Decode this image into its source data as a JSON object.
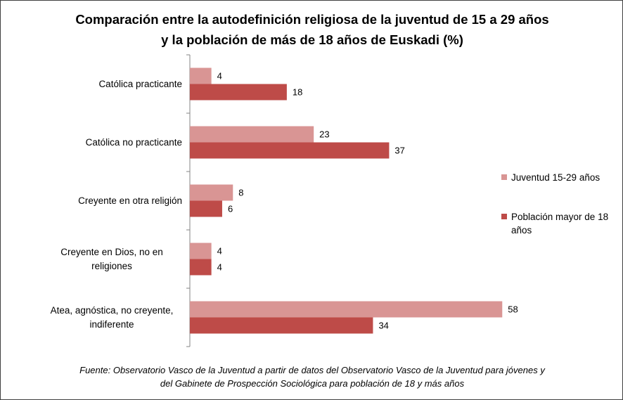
{
  "chart_data": {
    "type": "bar",
    "orientation": "horizontal",
    "title": "Comparación entre la autodefinición religiosa de la juventud de 15 a 29 años y la población de más de 18 años de Euskadi (%)",
    "categories": [
      "Católica practicante",
      "Católica no practicante",
      "Creyente en otra religión",
      "Creyente en Dios, no en religiones",
      "Atea, agnóstica, no creyente, indiferente"
    ],
    "series": [
      {
        "name": "Juventud 15-29 años",
        "color": "#d99594",
        "values": [
          4,
          23,
          8,
          4,
          58
        ]
      },
      {
        "name": "Población mayor de 18 años",
        "color": "#be4b48",
        "values": [
          18,
          37,
          6,
          4,
          34
        ]
      }
    ],
    "xlim": [
      0,
      60
    ],
    "legend": "right",
    "source": "Fuente: Observatorio Vasco de la Juventud a partir de datos del Observatorio Vasco de la Juventud  para jóvenes y del Gabinete de Prospección Sociológica para población de 18 y más años"
  }
}
